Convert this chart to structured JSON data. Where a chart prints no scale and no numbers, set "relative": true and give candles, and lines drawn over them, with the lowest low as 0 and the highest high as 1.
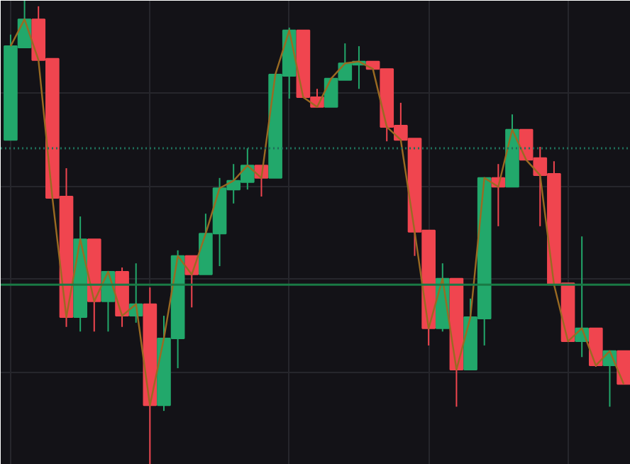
{
  "chart_data": {
    "type": "candlestick",
    "relative": true,
    "grid": true,
    "categories": [
      null,
      null,
      null,
      null,
      null,
      null,
      null,
      null,
      null,
      null,
      null,
      null,
      null,
      null,
      null,
      null,
      null,
      null,
      null,
      null,
      null,
      null,
      null,
      null,
      null,
      null,
      null,
      null,
      null,
      null,
      null,
      null,
      null,
      null,
      null,
      null,
      null,
      null,
      null,
      null,
      null,
      null,
      null,
      null,
      null
    ],
    "ohlc": [
      [
        0.7,
        0.927,
        0.7,
        0.902
      ],
      [
        0.899,
        1.0,
        0.899,
        0.96
      ],
      [
        0.96,
        0.988,
        0.872,
        0.872
      ],
      [
        0.875,
        0.875,
        0.575,
        0.575
      ],
      [
        0.578,
        0.639,
        0.297,
        0.318
      ],
      [
        0.318,
        0.535,
        0.287,
        0.486
      ],
      [
        0.486,
        0.486,
        0.287,
        0.352
      ],
      [
        0.352,
        0.416,
        0.287,
        0.416
      ],
      [
        0.416,
        0.425,
        0.297,
        0.321
      ],
      [
        0.321,
        0.434,
        0.306,
        0.346
      ],
      [
        0.346,
        0.382,
        0.0,
        0.128
      ],
      [
        0.128,
        0.321,
        0.116,
        0.272
      ],
      [
        0.272,
        0.462,
        0.208,
        0.45
      ],
      [
        0.45,
        0.45,
        0.339,
        0.41
      ],
      [
        0.41,
        0.541,
        0.41,
        0.498
      ],
      [
        0.498,
        0.618,
        0.428,
        0.596
      ],
      [
        0.593,
        0.648,
        0.563,
        0.612
      ],
      [
        0.609,
        0.682,
        0.593,
        0.645
      ],
      [
        0.645,
        0.645,
        0.578,
        0.618
      ],
      [
        0.618,
        0.841,
        0.618,
        0.841
      ],
      [
        0.838,
        0.942,
        0.789,
        0.936
      ],
      [
        0.936,
        0.936,
        0.792,
        0.792
      ],
      [
        0.792,
        0.81,
        0.771,
        0.771
      ],
      [
        0.771,
        0.832,
        0.771,
        0.832
      ],
      [
        0.829,
        0.908,
        0.829,
        0.865
      ],
      [
        0.862,
        0.902,
        0.81,
        0.869
      ],
      [
        0.869,
        0.869,
        0.853,
        0.853
      ],
      [
        0.853,
        0.853,
        0.697,
        0.728
      ],
      [
        0.731,
        0.78,
        0.7,
        0.7
      ],
      [
        0.703,
        0.703,
        0.45,
        0.502
      ],
      [
        0.505,
        0.505,
        0.257,
        0.294
      ],
      [
        0.294,
        0.434,
        0.287,
        0.401
      ],
      [
        0.401,
        0.401,
        0.125,
        0.205
      ],
      [
        0.205,
        0.358,
        0.205,
        0.318
      ],
      [
        0.315,
        0.618,
        0.257,
        0.618
      ],
      [
        0.618,
        0.648,
        0.514,
        0.599
      ],
      [
        0.599,
        0.755,
        0.599,
        0.722
      ],
      [
        0.722,
        0.722,
        0.657,
        0.657
      ],
      [
        0.661,
        0.685,
        0.514,
        0.624
      ],
      [
        0.627,
        0.654,
        0.388,
        0.388
      ],
      [
        0.391,
        0.391,
        0.266,
        0.266
      ],
      [
        0.266,
        0.492,
        0.232,
        0.294
      ],
      [
        0.294,
        0.294,
        0.211,
        0.214
      ],
      [
        0.214,
        0.245,
        0.125,
        0.245
      ],
      [
        0.245,
        0.245,
        0.174,
        0.174
      ]
    ],
    "colors": [
      "#22a86b",
      "#22a86b",
      "#f0454f",
      "#f0454f",
      "#f0454f",
      "#22a86b",
      "#f0454f",
      "#22a86b",
      "#f0454f",
      "#22a86b",
      "#f0454f",
      "#22a86b",
      "#22a86b",
      "#f0454f",
      "#22a86b",
      "#22a86b",
      "#22a86b",
      "#22a86b",
      "#f0454f",
      "#22a86b",
      "#22a86b",
      "#f0454f",
      "#f0454f",
      "#22a86b",
      "#22a86b",
      "#22a86b",
      "#f0454f",
      "#f0454f",
      "#f0454f",
      "#f0454f",
      "#f0454f",
      "#22a86b",
      "#f0454f",
      "#22a86b",
      "#22a86b",
      "#f0454f",
      "#22a86b",
      "#f0454f",
      "#f0454f",
      "#f0454f",
      "#f0454f",
      "#22a86b",
      "#f0454f",
      "#22a86b",
      "#f0454f"
    ],
    "series": [
      {
        "type": "line",
        "color": "#9a6a22",
        "values": [
          0.902,
          0.96,
          0.872,
          0.575,
          0.318,
          0.486,
          0.352,
          0.416,
          0.321,
          0.346,
          0.128,
          0.272,
          0.45,
          0.41,
          0.498,
          0.596,
          0.612,
          0.645,
          0.618,
          0.841,
          0.936,
          0.792,
          0.771,
          0.832,
          0.865,
          0.869,
          0.853,
          0.728,
          0.7,
          0.502,
          0.294,
          0.401,
          0.205,
          0.318,
          0.618,
          0.599,
          0.722,
          0.657,
          0.624,
          0.388,
          0.266,
          0.294,
          0.214,
          0.245,
          0.174
        ]
      }
    ],
    "ref_lines": [
      {
        "axis": "y",
        "value": 0.682,
        "label": null,
        "color": "#1f6e5a",
        "line_style": "dotted"
      },
      {
        "axis": "y",
        "value": 0.388,
        "label": null,
        "color": "#1a7a45",
        "line_style": "solid"
      }
    ]
  }
}
